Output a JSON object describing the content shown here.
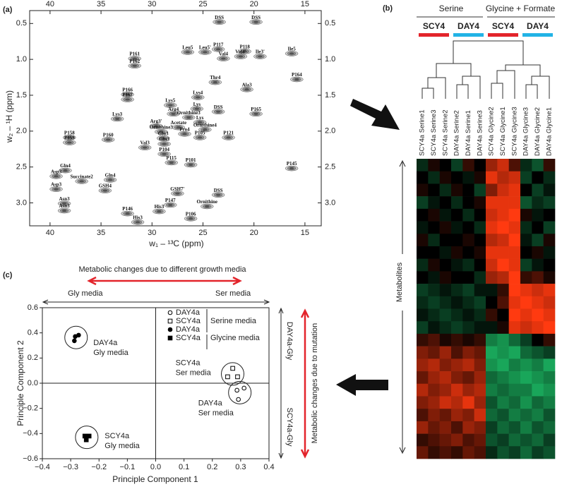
{
  "chart_data": [
    {
      "type": "contour",
      "panel": "(a)",
      "x_label": "w₁ – ¹³C (ppm)",
      "y_label": "w₂ – ¹H (ppm)",
      "color": "#4d4d4d",
      "xlim": [
        42,
        13.4
      ],
      "ylim": [
        0.32,
        3.32
      ],
      "xticks": [
        40,
        35,
        30,
        25,
        20,
        15
      ],
      "yticks": [
        0.5,
        {
          "value": 1,
          "label": "1.0"
        },
        1.5,
        {
          "value": 2,
          "label": "2.0"
        },
        2.5,
        {
          "value": 3,
          "label": "3.0"
        }
      ],
      "annotations": [
        {
          "text": "DSS",
          "x": 23.4,
          "y": 0.42
        },
        {
          "text": "DSS",
          "x": 19.8,
          "y": 0.42
        },
        {
          "text": "Ile5",
          "x": 16.3,
          "y": 0.86
        },
        {
          "text": "P161",
          "x": 31.7,
          "y": 0.93
        },
        {
          "text": "P162",
          "x": 31.7,
          "y": 1.03
        },
        {
          "text": "Leu5",
          "x": 26.5,
          "y": 0.84
        },
        {
          "text": "Leu5'",
          "x": 24.8,
          "y": 0.84
        },
        {
          "text": "P117",
          "x": 23.5,
          "y": 0.8
        },
        {
          "text": "P118",
          "x": 20.9,
          "y": 0.83
        },
        {
          "text": "Val4",
          "x": 23.0,
          "y": 0.93
        },
        {
          "text": "Val4'",
          "x": 21.3,
          "y": 0.9
        },
        {
          "text": "Ile3'",
          "x": 19.4,
          "y": 0.9
        },
        {
          "text": "P164",
          "x": 15.8,
          "y": 1.22
        },
        {
          "text": "Thr4",
          "x": 23.8,
          "y": 1.26
        },
        {
          "text": "Ala3",
          "x": 20.7,
          "y": 1.36
        },
        {
          "text": "Lys4",
          "x": 25.5,
          "y": 1.47
        },
        {
          "text": "P166",
          "x": 32.4,
          "y": 1.43
        },
        {
          "text": "P167",
          "x": 32.4,
          "y": 1.5
        },
        {
          "text": "Lys5",
          "x": 28.2,
          "y": 1.58
        },
        {
          "text": "Arg4",
          "x": 27.9,
          "y": 1.7
        },
        {
          "text": "Lys",
          "x": 25.6,
          "y": 1.63
        },
        {
          "text": "DSS",
          "x": 23.5,
          "y": 1.67
        },
        {
          "text": "P165",
          "x": 19.8,
          "y": 1.7
        },
        {
          "text": "Ornithine3",
          "x": 26.4,
          "y": 1.75
        },
        {
          "text": "Lys",
          "x": 25.3,
          "y": 1.82
        },
        {
          "text": "Lys3",
          "x": 33.4,
          "y": 1.77
        },
        {
          "text": "Arg3'",
          "x": 29.6,
          "y": 1.87
        },
        {
          "text": "Ornithine3",
          "x": 29.1,
          "y": 1.95
        },
        {
          "text": "Acetate",
          "x": 27.4,
          "y": 1.89
        },
        {
          "text": "Ornithine4",
          "x": 24.8,
          "y": 1.92
        },
        {
          "text": "Pro4",
          "x": 26.8,
          "y": 1.98
        },
        {
          "text": "Glu3",
          "x": 28.9,
          "y": 2.04
        },
        {
          "text": "Gln3",
          "x": 28.8,
          "y": 2.12
        },
        {
          "text": "P105",
          "x": 25.3,
          "y": 2.03
        },
        {
          "text": "P121",
          "x": 22.5,
          "y": 2.03
        },
        {
          "text": "P158",
          "x": 38.1,
          "y": 2.03
        },
        {
          "text": "P159",
          "x": 38.1,
          "y": 2.1
        },
        {
          "text": "P160",
          "x": 34.3,
          "y": 2.06
        },
        {
          "text": "Val3",
          "x": 30.7,
          "y": 2.17
        },
        {
          "text": "Gln4",
          "x": 38.5,
          "y": 2.49
        },
        {
          "text": "P104",
          "x": 28.8,
          "y": 2.26
        },
        {
          "text": "P115",
          "x": 28.1,
          "y": 2.38
        },
        {
          "text": "P101",
          "x": 26.2,
          "y": 2.41
        },
        {
          "text": "Succinate2",
          "x": 36.9,
          "y": 2.64
        },
        {
          "text": "Gln4",
          "x": 34.1,
          "y": 2.62
        },
        {
          "text": "GSH4",
          "x": 34.6,
          "y": 2.77
        },
        {
          "text": "P145",
          "x": 16.3,
          "y": 2.46
        },
        {
          "text": "Asp3",
          "x": 39.4,
          "y": 2.57
        },
        {
          "text": "Asp3",
          "x": 39.4,
          "y": 2.75
        },
        {
          "text": "Asn3",
          "x": 38.6,
          "y": 2.95
        },
        {
          "text": "Asn3",
          "x": 38.6,
          "y": 3.05
        },
        {
          "text": "GSH7'",
          "x": 27.5,
          "y": 2.81
        },
        {
          "text": "DSS",
          "x": 23.5,
          "y": 2.83
        },
        {
          "text": "Ornithine",
          "x": 24.6,
          "y": 2.99
        },
        {
          "text": "P147",
          "x": 28.2,
          "y": 2.97
        },
        {
          "text": "His3",
          "x": 29.3,
          "y": 3.06
        },
        {
          "text": "P146",
          "x": 32.4,
          "y": 3.09
        },
        {
          "text": "His3",
          "x": 31.4,
          "y": 3.21
        },
        {
          "text": "P106",
          "x": 26.2,
          "y": 3.16
        }
      ]
    },
    {
      "type": "heatmap",
      "panel": "(b)",
      "y_label": "Metabolites",
      "groups": [
        "Serine",
        "Glycine + Formate"
      ],
      "subgroups": [
        {
          "name": "SCY4",
          "color": "#e3242b"
        },
        {
          "name": "DAY4",
          "color": "#22b3e6"
        },
        {
          "name": "SCY4",
          "color": "#e3242b"
        },
        {
          "name": "DAY4",
          "color": "#22b3e6"
        }
      ],
      "columns": [
        "SCY4a Serine1",
        "SCY4a Serine3",
        "SCY4a Serine2",
        "DAY4a Serine2",
        "DAY4a Serine1",
        "DAY4a Serine3",
        "SCY4a Glycine2",
        "SCY4a Glycine1",
        "SCY4a Glycine3",
        "DAY4a Glycine3",
        "DAY4a Glycine2",
        "DAY4a Glycine1"
      ],
      "colors": {
        "low": "#1fd070",
        "mid": "#000000",
        "high": "#ff3a10"
      },
      "values": [
        [
          -0.2,
          0.1,
          0,
          -0.3,
          0.2,
          0,
          0.6,
          0.8,
          0.3,
          -0.2,
          -0.4,
          0.2
        ],
        [
          0,
          -0.2,
          0.1,
          0,
          -0.1,
          0.1,
          0.9,
          0.7,
          0.8,
          -0.3,
          0,
          -0.2
        ],
        [
          0.1,
          0,
          -0.2,
          0.1,
          0,
          -0.3,
          0.5,
          0.8,
          0.9,
          0,
          -0.3,
          -0.1
        ],
        [
          -0.3,
          -0.1,
          0,
          -0.2,
          0,
          0.1,
          0.9,
          0.9,
          0.9,
          -0.4,
          -0.2,
          -0.3
        ],
        [
          0,
          0.1,
          -0.1,
          0,
          -0.2,
          0,
          0.8,
          0.9,
          1,
          0.1,
          -0.1,
          0
        ],
        [
          -0.1,
          0,
          0.1,
          -0.1,
          0,
          -0.2,
          0.9,
          1,
          0.9,
          -0.2,
          0,
          -0.3
        ],
        [
          0.1,
          -0.2,
          0,
          0,
          0.1,
          0,
          0.7,
          0.8,
          1,
          -0.1,
          -0.3,
          0.1
        ],
        [
          0,
          0,
          -0.1,
          0.1,
          0,
          0.1,
          0.9,
          0.9,
          0.9,
          0,
          0.1,
          -0.1
        ],
        [
          -0.2,
          0.1,
          0,
          -0.1,
          -0.2,
          0,
          0.8,
          1,
          0.9,
          -0.3,
          -0.1,
          0
        ],
        [
          0,
          -0.1,
          0.1,
          0,
          0,
          -0.2,
          0.6,
          0.7,
          1,
          0.2,
          0.3,
          0.1
        ],
        [
          -0.3,
          -0.2,
          -0.1,
          -0.2,
          -0.3,
          -0.1,
          -0.1,
          0.2,
          1,
          0.9,
          0.8,
          0.9
        ],
        [
          -0.2,
          -0.3,
          -0.2,
          -0.1,
          -0.2,
          -0.3,
          0,
          0.3,
          0.9,
          1,
          0.9,
          0.8
        ],
        [
          -0.1,
          -0.2,
          -0.3,
          -0.2,
          -0.1,
          -0.2,
          0.2,
          0,
          1,
          0.9,
          1,
          0.9
        ],
        [
          -0.3,
          -0.1,
          -0.2,
          -0.3,
          -0.2,
          -0.1,
          -0.1,
          0.1,
          0.9,
          0.8,
          0.9,
          1
        ],
        [
          0.2,
          0.3,
          0.1,
          0.2,
          0.1,
          0.2,
          -0.6,
          -0.7,
          -0.5,
          -0.3,
          0,
          0.2
        ],
        [
          0.5,
          0.4,
          0.6,
          0.3,
          0.5,
          0.4,
          -0.8,
          -0.7,
          -0.8,
          -0.5,
          -0.4,
          -0.3
        ],
        [
          0.6,
          0.7,
          0.5,
          0.6,
          0.7,
          0.5,
          -0.7,
          -0.8,
          -0.6,
          -0.7,
          -0.6,
          -0.8
        ],
        [
          0.4,
          0.6,
          0.7,
          0.5,
          0.4,
          0.6,
          -0.5,
          -0.6,
          -0.7,
          -0.8,
          -0.7,
          -0.6
        ],
        [
          0.7,
          0.5,
          0.6,
          0.8,
          0.6,
          0.7,
          -0.6,
          -0.5,
          -0.6,
          -0.6,
          -0.8,
          -0.7
        ],
        [
          0.5,
          0.6,
          0.8,
          0.7,
          0.9,
          0.6,
          -0.4,
          -0.6,
          -0.5,
          -0.7,
          -0.5,
          -0.6
        ],
        [
          0.3,
          0.5,
          0.4,
          0.6,
          0.5,
          0.8,
          -0.5,
          -0.4,
          -0.6,
          -0.5,
          -0.6,
          -0.4
        ],
        [
          0.6,
          0.4,
          0.5,
          0.3,
          0.6,
          0.5,
          -0.3,
          -0.5,
          -0.4,
          -0.6,
          -0.4,
          -0.5
        ],
        [
          0.2,
          0.3,
          0.4,
          0.5,
          0.3,
          0.4,
          -0.4,
          -0.3,
          -0.5,
          -0.4,
          -0.5,
          -0.3
        ],
        [
          0.4,
          0.2,
          0.3,
          0.2,
          0.4,
          0.3,
          -0.2,
          -0.4,
          -0.3,
          -0.5,
          -0.3,
          -0.4
        ]
      ]
    },
    {
      "type": "scatter",
      "panel": "(c)",
      "x_label": "Principle Component 1",
      "y_label": "Principle Component 2",
      "xlim": [
        -0.4,
        0.4
      ],
      "ylim": [
        -0.6,
        0.6
      ],
      "xticks": [
        {
          "value": -0.4,
          "label": "−0.4"
        },
        {
          "value": -0.3,
          "label": "−0.3"
        },
        {
          "value": -0.2,
          "label": "−0.2"
        },
        {
          "value": -0.1,
          "label": "−0.1"
        },
        {
          "value": 0,
          "label": "0.0"
        },
        0.1,
        0.2,
        0.3,
        0.4
      ],
      "yticks": [
        {
          "value": -0.6,
          "label": "−0.6"
        },
        {
          "value": -0.4,
          "label": "−0.4"
        },
        {
          "value": -0.2,
          "label": "−0.2"
        },
        {
          "value": 0,
          "label": "0.0"
        },
        0.2,
        0.4,
        0.6
      ],
      "series": [
        {
          "name": "DAY4a",
          "marker": "circle-open",
          "color": "#000000",
          "x": [
            0.287,
            0.312,
            0.292
          ],
          "y": [
            -0.056,
            -0.039,
            -0.129
          ]
        },
        {
          "name": "SCY4a",
          "marker": "square-open",
          "color": "#000000",
          "x": [
            0.272,
            0.254,
            0.289
          ],
          "y": [
            0.118,
            0.051,
            0.051
          ]
        },
        {
          "name": "DAY4a",
          "marker": "circle",
          "color": "#000000",
          "x": [
            -0.284,
            -0.272,
            -0.287
          ],
          "y": [
            0.371,
            0.382,
            0.337
          ]
        },
        {
          "name": "SCY4a",
          "marker": "square",
          "color": "#000000",
          "x": [
            -0.25,
            -0.235,
            -0.245
          ],
          "y": [
            -0.42,
            -0.42,
            -0.45
          ]
        }
      ],
      "legend_groups": [
        "Serine media",
        "Glycine media"
      ],
      "annotations": [
        {
          "lines": [
            "DAY4a",
            "Gly media"
          ],
          "x": -0.22,
          "y": 0.32
        },
        {
          "lines": [
            "SCY4a",
            "Ser media"
          ],
          "x": 0.07,
          "y": 0.16
        },
        {
          "lines": [
            "DAY4a",
            "Ser media"
          ],
          "x": 0.15,
          "y": -0.16
        },
        {
          "lines": [
            "SCY4a",
            "Gly media"
          ],
          "x": -0.18,
          "y": -0.42
        }
      ],
      "top_title": "Metabolic changes due to different growth media",
      "top_left": "Gly media",
      "top_right": "Ser media",
      "right_upper": "DAY4a-Gly",
      "right_lower": "SCY4a-Gly",
      "right_title": "Metabolic changes due to mutation"
    }
  ]
}
